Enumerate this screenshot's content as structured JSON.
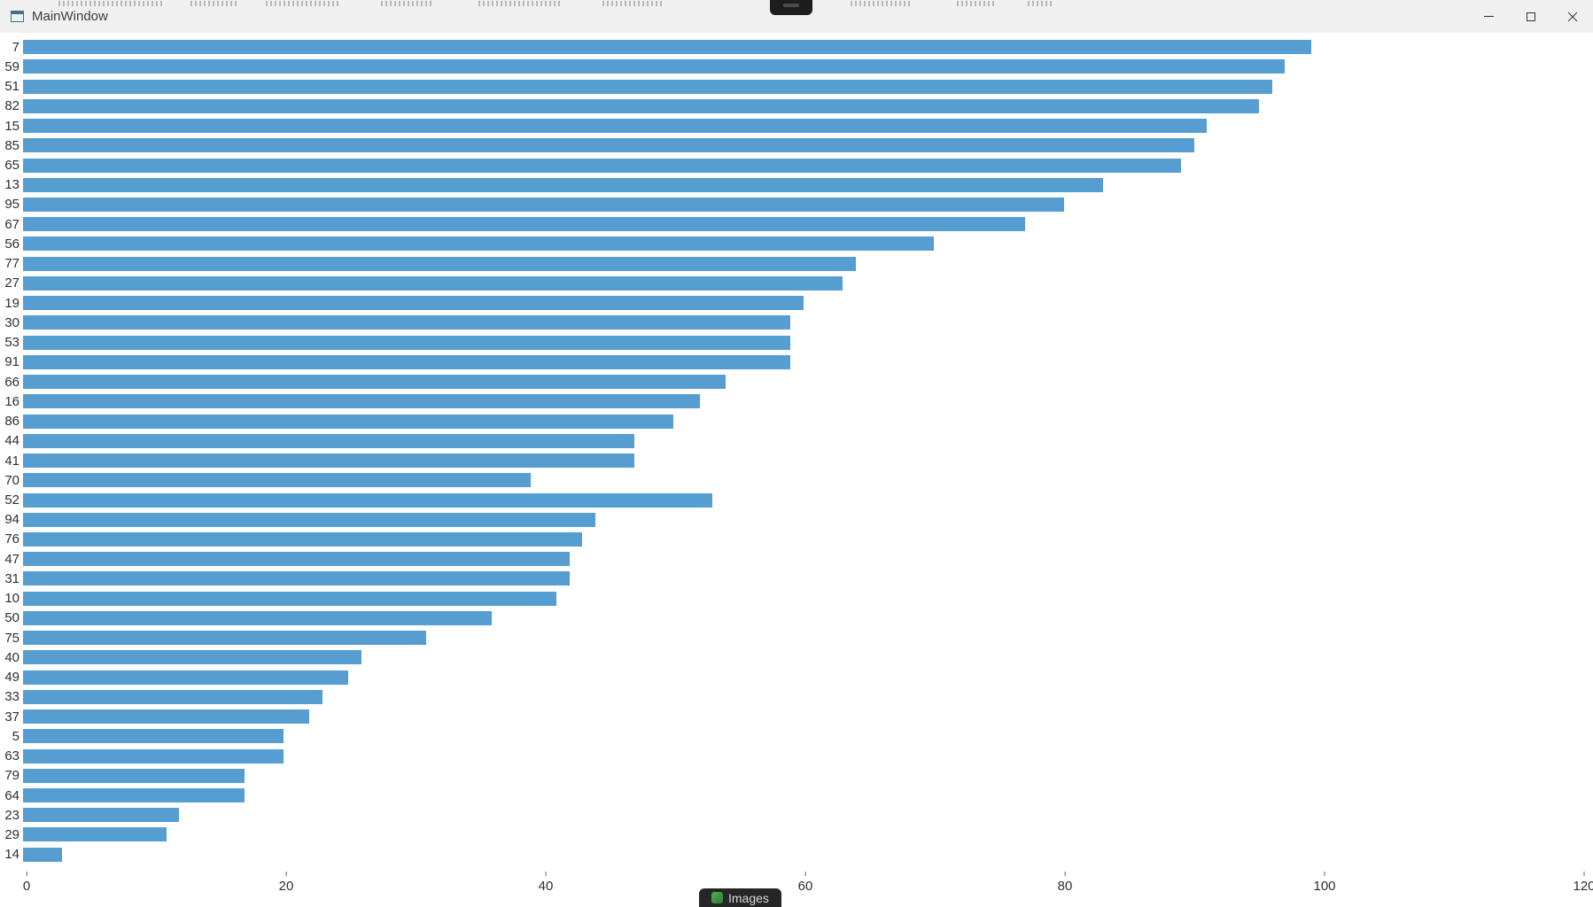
{
  "window": {
    "title": "MainWindow"
  },
  "artifacts": {
    "taskbar_label": "Images"
  },
  "colors": {
    "bar": "#569dd2",
    "titlebar_bg": "#f0f0f0",
    "chart_bg": "#ffffff"
  },
  "chart_data": {
    "type": "bar",
    "orientation": "horizontal",
    "title": "",
    "xlabel": "",
    "ylabel": "",
    "grid": false,
    "legend": "none",
    "xlim": [
      0,
      120
    ],
    "x_ticks": [
      0,
      20,
      40,
      60,
      80,
      100,
      120
    ],
    "bar_color": "#569dd2",
    "categories": [
      "7",
      "59",
      "51",
      "82",
      "15",
      "85",
      "65",
      "13",
      "95",
      "67",
      "56",
      "77",
      "27",
      "19",
      "30",
      "53",
      "91",
      "66",
      "16",
      "86",
      "44",
      "41",
      "70",
      "52",
      "94",
      "76",
      "47",
      "31",
      "10",
      "50",
      "75",
      "40",
      "49",
      "33",
      "37",
      "5",
      "63",
      "79",
      "64",
      "23",
      "29",
      "14"
    ],
    "values": [
      99,
      97,
      96,
      95,
      91,
      90,
      89,
      83,
      80,
      77,
      70,
      64,
      63,
      60,
      59,
      59,
      59,
      54,
      52,
      50,
      47,
      47,
      39,
      53,
      44,
      43,
      42,
      42,
      41,
      36,
      31,
      26,
      25,
      23,
      22,
      20,
      20,
      17,
      17,
      12,
      11,
      3
    ]
  }
}
